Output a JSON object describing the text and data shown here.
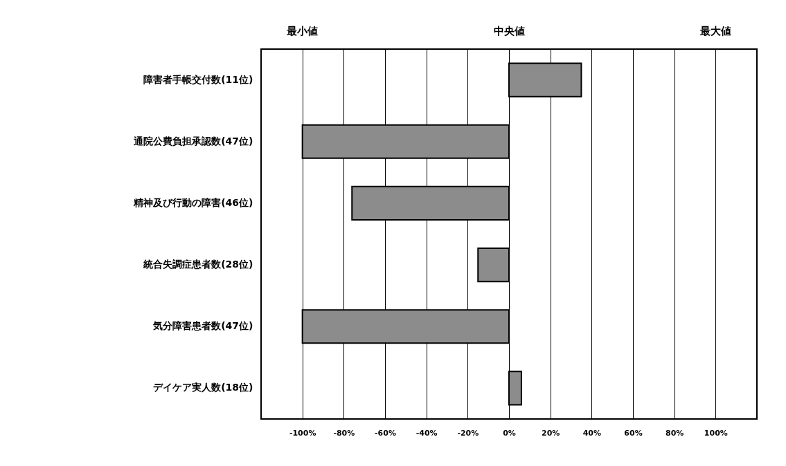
{
  "chart_data": {
    "type": "bar",
    "orientation": "horizontal",
    "categories": [
      "障害者手帳交付数(11位)",
      "通院公費負担承認数(47位)",
      "精神及び行動の障害(46位)",
      "統合失調症患者数(28位)",
      "気分障害患者数(47位)",
      "デイケア実人数(18位)"
    ],
    "series": [
      {
        "color": "#8c8c8c",
        "values": [
          35,
          -100,
          -76,
          -15,
          -100,
          6
        ]
      }
    ],
    "xlim": [
      -120,
      120
    ],
    "xticks": [
      {
        "value": -100,
        "label": "-100%"
      },
      {
        "value": -80,
        "label": "-80%"
      },
      {
        "value": -60,
        "label": "-60%"
      },
      {
        "value": -40,
        "label": "-40%"
      },
      {
        "value": -20,
        "label": "-20%"
      },
      {
        "value": 0,
        "label": "0%"
      },
      {
        "value": 20,
        "label": "20%"
      },
      {
        "value": 40,
        "label": "40%"
      },
      {
        "value": 60,
        "label": "60%"
      },
      {
        "value": 80,
        "label": "80%"
      },
      {
        "value": 100,
        "label": "100%"
      }
    ],
    "grid": "x",
    "annotations": [
      "最小値",
      "中央値",
      "最大値"
    ]
  }
}
